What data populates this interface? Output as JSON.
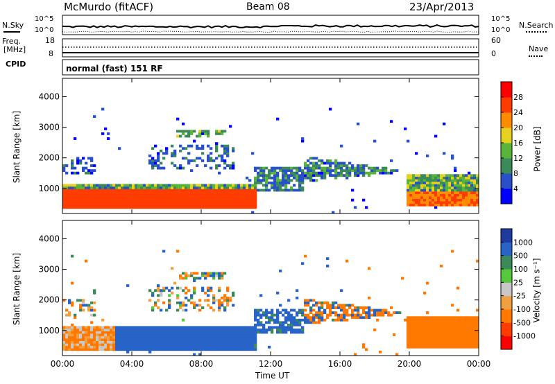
{
  "header": {
    "station": "McMurdo (fitACF)",
    "beam": "Beam 08",
    "date": "23/Apr/2013"
  },
  "top_panels": {
    "nsky_label": "N.Sky",
    "nsearch_label": "N.Search",
    "freq_label_1": "Freq.",
    "freq_label_2": "[MHz]",
    "nave_label": "Nave",
    "cpid_label": "CPID",
    "cpid_text": "normal (fast) 151 RF",
    "noise_left_ticks": [
      "10^5",
      "10^0"
    ],
    "noise_right_ticks": [
      "10^5",
      "10^0"
    ],
    "freq_ticks": [
      "18",
      "8"
    ],
    "nave_ticks": [
      "60",
      "0"
    ]
  },
  "chart_data": [
    {
      "type": "heatmap",
      "panel": "power",
      "ylabel": "Slant Range [km]",
      "xlabel": "Time UT",
      "x_ticks": [
        "00:00",
        "04:00",
        "08:00",
        "12:00",
        "16:00",
        "20:00",
        "00:00"
      ],
      "xlim_hours": [
        0,
        24
      ],
      "y_ticks": [
        1000,
        2000,
        3000,
        4000
      ],
      "ylim": [
        180,
        4600
      ],
      "colorbar": {
        "label": "Power [dB]",
        "ticks": [
          "4",
          "8",
          "12",
          "16",
          "20",
          "24",
          "28"
        ],
        "colors": [
          "#0000ff",
          "#2850c8",
          "#3c8a5a",
          "#5ab43c",
          "#e6d020",
          "#ff8c00",
          "#ff3c00",
          "#ff0000"
        ]
      }
    },
    {
      "type": "heatmap",
      "panel": "velocity",
      "ylabel": "Slant Range [km]",
      "xlabel": "Time UT",
      "x_ticks": [
        "00:00",
        "04:00",
        "08:00",
        "12:00",
        "16:00",
        "20:00",
        "00:00"
      ],
      "xlim_hours": [
        0,
        24
      ],
      "y_ticks": [
        1000,
        2000,
        3000,
        4000
      ],
      "ylim": [
        180,
        4600
      ],
      "colorbar": {
        "label": "Velocity [m s⁻¹]",
        "ticks": [
          "1000",
          "500",
          "100",
          "25",
          "-25",
          "-100",
          "-500",
          "-1000"
        ],
        "colors": [
          "#1e3ca0",
          "#2864c8",
          "#3c8a5a",
          "#55c83c",
          "#c8c8c8",
          "#f0a040",
          "#ff7800",
          "#ff3c00",
          "#ff0000"
        ]
      }
    }
  ]
}
